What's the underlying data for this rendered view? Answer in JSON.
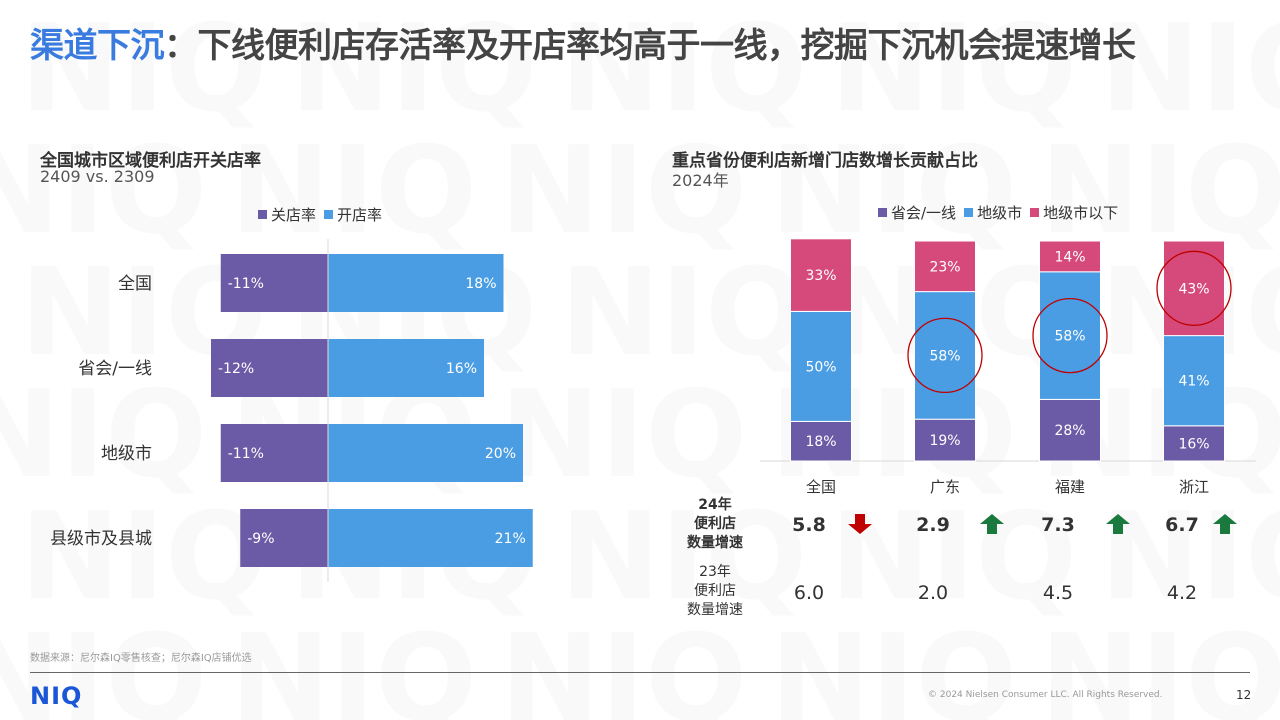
{
  "page": {
    "title_highlight": "渠道下沉",
    "title_rest": "：下线便利店存活率及开店率均高于一线，挖掘下沉机会提速增长",
    "source": "数据来源：尼尔森IQ零售核查；尼尔森IQ店铺优选",
    "logo": "NIQ",
    "copyright": "© 2024 Nielsen Consumer LLC. All Rights Reserved.",
    "page_number": "12"
  },
  "colors": {
    "purple": "#6b5aa6",
    "blue": "#4a9de3",
    "pink": "#d54a7b",
    "title_accent": "#3a7be0",
    "arrow_down": "#c00000",
    "arrow_up": "#1a7a3e",
    "circle": "#c00000"
  },
  "left_chart": {
    "title": "全国城市区域便利店开关店率",
    "subtitle": "2409 vs. 2309",
    "legend": [
      {
        "label": "关店率",
        "color": "#6b5aa6"
      },
      {
        "label": "开店率",
        "color": "#4a9de3"
      }
    ]
  },
  "right_chart": {
    "title": "重点省份便利店新增门店数增长贡献占比",
    "subtitle": "2024年",
    "legend": [
      {
        "label": "省会/一线",
        "color": "#6b5aa6"
      },
      {
        "label": "地级市",
        "color": "#4a9de3"
      },
      {
        "label": "地级市以下",
        "color": "#d54a7b"
      }
    ],
    "metrics": {
      "row24_label": [
        "24年",
        "便利店",
        "数量增速"
      ],
      "row23_label": [
        "23年",
        "便利店",
        "数量增速"
      ],
      "growth_24": [
        "5.8",
        "2.9",
        "7.3",
        "6.7"
      ],
      "growth_24_trend": [
        "down",
        "up",
        "up",
        "up"
      ],
      "growth_23": [
        "6.0",
        "2.0",
        "4.5",
        "4.2"
      ]
    }
  },
  "chart_data": [
    {
      "type": "bar",
      "orientation": "horizontal",
      "categories": [
        "全国",
        "省会/一线",
        "地级市",
        "县级市及县城"
      ],
      "series": [
        {
          "name": "关店率",
          "values": [
            -11,
            -12,
            -11,
            -9
          ],
          "labels": [
            "-11%",
            "-12%",
            "-11%",
            "-9%"
          ],
          "color": "#6b5aa6"
        },
        {
          "name": "开店率",
          "values": [
            18,
            16,
            20,
            21
          ],
          "labels": [
            "18%",
            "16%",
            "20%",
            "21%"
          ],
          "color": "#4a9de3"
        }
      ],
      "unit": "%",
      "xlim": [
        -14,
        24
      ],
      "legend_position": "top"
    },
    {
      "type": "bar",
      "stacked": true,
      "categories": [
        "全国",
        "广东",
        "福建",
        "浙江"
      ],
      "series": [
        {
          "name": "省会/一线",
          "values": [
            18,
            19,
            28,
            16
          ],
          "labels": [
            "18%",
            "19%",
            "28%",
            "16%"
          ],
          "color": "#6b5aa6"
        },
        {
          "name": "地级市",
          "values": [
            50,
            58,
            58,
            41
          ],
          "labels": [
            "50%",
            "58%",
            "58%",
            "41%"
          ],
          "color": "#4a9de3"
        },
        {
          "name": "地级市以下",
          "values": [
            33,
            23,
            14,
            43
          ],
          "labels": [
            "33%",
            "23%",
            "14%",
            "43%"
          ],
          "color": "#d54a7b"
        }
      ],
      "highlighted": [
        {
          "category": "广东",
          "series": "地级市"
        },
        {
          "category": "福建",
          "series": "地级市"
        },
        {
          "category": "浙江",
          "series": "地级市以下"
        }
      ],
      "unit": "%",
      "ylim": [
        0,
        101
      ],
      "legend_position": "top"
    }
  ]
}
